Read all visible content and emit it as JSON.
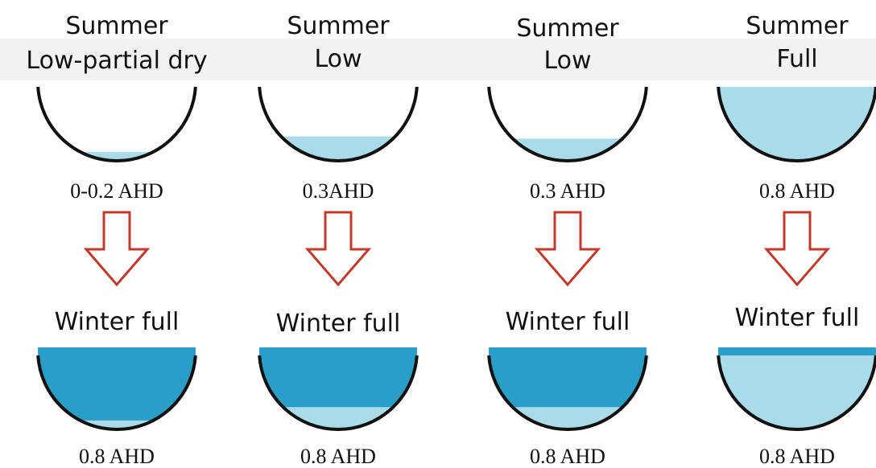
{
  "columns": [
    {
      "summer_title": "Summer",
      "summer_state": "Low-partial dry",
      "summer_level": "0-0.2 AHD",
      "winter_title": "Winter full",
      "winter_level": "0.8 AHD"
    },
    {
      "summer_title": "Summer",
      "summer_state": "Low",
      "summer_level": "0.3AHD",
      "winter_title": "Winter full",
      "winter_level": "0.8 AHD"
    },
    {
      "summer_title": "Summer",
      "summer_state": "Low",
      "summer_level": "0.3 AHD",
      "winter_title": "Winter full",
      "winter_level": "0.8 AHD"
    },
    {
      "summer_title": "Summer",
      "summer_state": "Full",
      "summer_level": "0.8 AHD",
      "winter_title": "Winter full",
      "winter_level": "0.8 AHD"
    }
  ]
}
